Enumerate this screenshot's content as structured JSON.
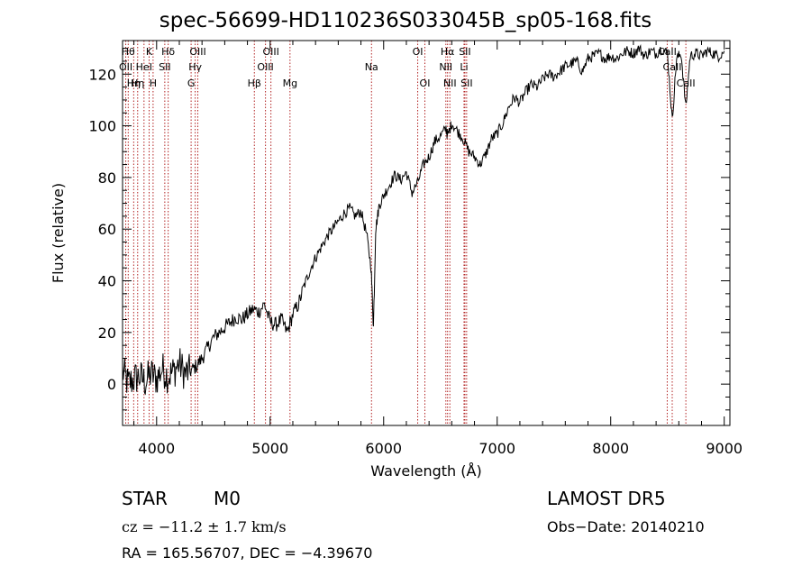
{
  "chart_data": {
    "type": "line",
    "title": "spec-56699-HD110236S033045B_sp05-168.fits",
    "xlabel": "Wavelength (Å)",
    "ylabel": "Flux (relative)",
    "xlim": [
      3700,
      9050
    ],
    "ylim": [
      -16,
      133
    ],
    "xticks": [
      4000,
      5000,
      6000,
      7000,
      8000,
      9000
    ],
    "yticks": [
      0,
      20,
      40,
      60,
      80,
      100,
      120
    ],
    "grid": false,
    "line_color": "#000000",
    "marker_color": "#b22222",
    "series": [
      {
        "x": [
          3700,
          3750,
          3800,
          3850,
          3900,
          3950,
          4000,
          4050,
          4100,
          4150,
          4200,
          4250,
          4300,
          4350,
          4400,
          4450,
          4500,
          4550,
          4600,
          4650,
          4700,
          4750,
          4800,
          4850,
          4900,
          4950,
          5000,
          5050,
          5100,
          5150,
          5200,
          5250,
          5300,
          5350,
          5400,
          5450,
          5500,
          5550,
          5600,
          5650,
          5700,
          5750,
          5800,
          5850,
          5890,
          5910,
          5930,
          5960,
          6000,
          6050,
          6100,
          6150,
          6200,
          6250,
          6300,
          6350,
          6400,
          6450,
          6500,
          6550,
          6563,
          6600,
          6650,
          6700,
          6750,
          6800,
          6850,
          6900,
          6950,
          7000,
          7050,
          7100,
          7150,
          7200,
          7250,
          7300,
          7350,
          7400,
          7450,
          7500,
          7550,
          7600,
          7650,
          7700,
          7750,
          7800,
          7850,
          7900,
          7950,
          8000,
          8050,
          8100,
          8150,
          8200,
          8250,
          8300,
          8350,
          8400,
          8450,
          8500,
          8542,
          8580,
          8620,
          8662,
          8700,
          8750,
          8800,
          8850,
          8900,
          8950,
          9000
        ],
        "y": [
          5,
          0,
          2,
          3,
          1,
          4,
          2,
          6,
          3,
          5,
          8,
          4,
          5,
          7,
          10,
          14,
          18,
          20,
          22,
          24,
          26,
          25,
          27,
          29,
          28,
          31,
          24,
          23,
          25,
          20,
          27,
          31,
          38,
          44,
          49,
          53,
          57,
          60,
          63,
          66,
          68,
          65,
          67,
          58,
          45,
          22,
          60,
          69,
          73,
          77,
          81,
          79,
          82,
          74,
          78,
          85,
          88,
          94,
          96,
          99,
          96,
          101,
          98,
          95,
          90,
          88,
          85,
          89,
          95,
          97,
          101,
          107,
          111,
          109,
          113,
          116,
          115,
          118,
          120,
          119,
          121,
          123,
          124,
          125,
          121,
          126,
          127,
          128,
          126,
          127,
          126,
          128,
          129,
          128,
          130,
          127,
          129,
          128,
          130,
          128,
          102,
          126,
          128,
          107,
          127,
          128,
          127,
          129,
          128,
          127,
          129
        ]
      }
    ],
    "line_markers": [
      {
        "x": 3750,
        "label": "Hθ",
        "row": 0
      },
      {
        "x": 3728,
        "label": "OII",
        "row": 1
      },
      {
        "x": 3798,
        "label": "Hη",
        "row": 2
      },
      {
        "x": 3833,
        "label": "Hη",
        "row": 2
      },
      {
        "x": 3889,
        "label": "HeI",
        "row": 1
      },
      {
        "x": 3934,
        "label": "K",
        "row": 0
      },
      {
        "x": 3969,
        "label": "H",
        "row": 2
      },
      {
        "x": 4072,
        "label": "SII",
        "row": 1
      },
      {
        "x": 4102,
        "label": "Hδ",
        "row": 0
      },
      {
        "x": 4304,
        "label": "G",
        "row": 2
      },
      {
        "x": 4340,
        "label": "Hγ",
        "row": 1
      },
      {
        "x": 4363,
        "label": "OIII",
        "row": 0
      },
      {
        "x": 4861,
        "label": "Hβ",
        "row": 2
      },
      {
        "x": 4959,
        "label": "OIII",
        "row": 1
      },
      {
        "x": 5007,
        "label": "OIII",
        "row": 0
      },
      {
        "x": 5175,
        "label": "Mg",
        "row": 2
      },
      {
        "x": 5893,
        "label": "Na",
        "row": 1
      },
      {
        "x": 6300,
        "label": "OI",
        "row": 0
      },
      {
        "x": 6363,
        "label": "OI",
        "row": 2
      },
      {
        "x": 6548,
        "label": "NII",
        "row": 1
      },
      {
        "x": 6563,
        "label": "Hα",
        "row": 0
      },
      {
        "x": 6583,
        "label": "NII",
        "row": 2
      },
      {
        "x": 6708,
        "label": "Li",
        "row": 1
      },
      {
        "x": 6716,
        "label": "SII",
        "row": 0
      },
      {
        "x": 6731,
        "label": "SII",
        "row": 2
      },
      {
        "x": 8498,
        "label": "CaII",
        "row": 0
      },
      {
        "x": 8542,
        "label": "CaII",
        "row": 1
      },
      {
        "x": 8662,
        "label": "CaII",
        "row": 2
      }
    ]
  },
  "info": {
    "object_class": "STAR",
    "subclass": "M0",
    "survey": "LAMOST DR5",
    "cz_line": "cz = −11.2 ± 1.7 km/s",
    "obs_date": "Obs−Date: 20140210",
    "coords_line": "RA = 165.56707, DEC =  −4.39670"
  }
}
